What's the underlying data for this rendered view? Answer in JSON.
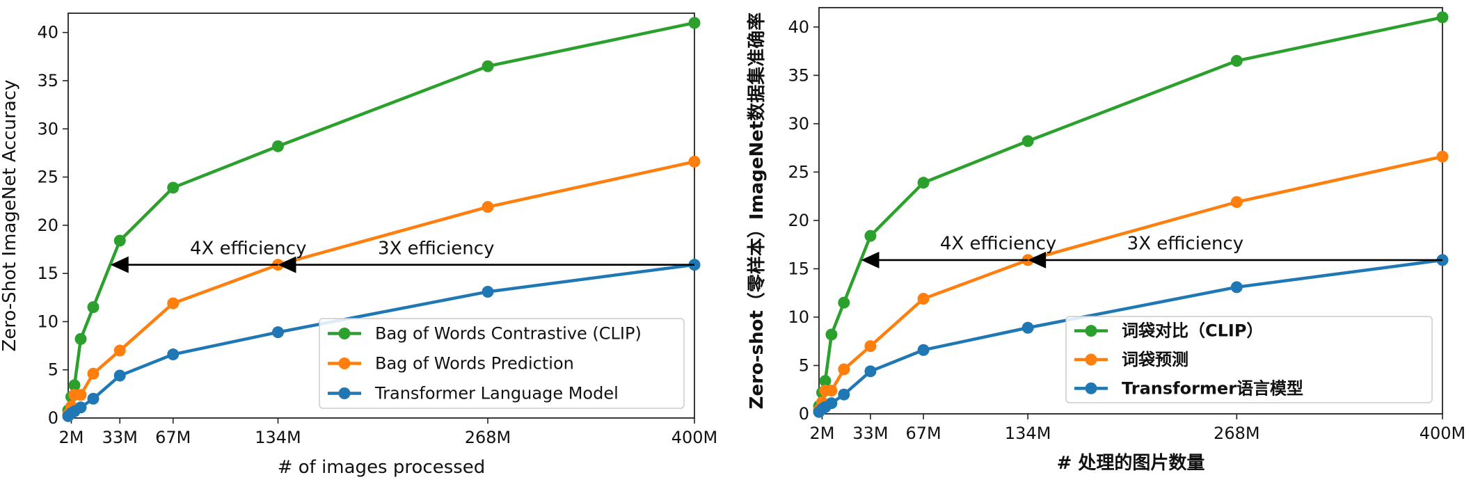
{
  "chart_data": [
    {
      "type": "line",
      "title": "",
      "xlabel": "# of images processed",
      "ylabel": "Zero-Shot ImageNet Accuracy",
      "xlim": [
        0,
        400
      ],
      "ylim": [
        0,
        42
      ],
      "xticks": [
        {
          "value": 2,
          "label": "2M"
        },
        {
          "value": 33,
          "label": "33M"
        },
        {
          "value": 67,
          "label": "67M"
        },
        {
          "value": 134,
          "label": "134M"
        },
        {
          "value": 268,
          "label": "268M"
        },
        {
          "value": 400,
          "label": "400M"
        }
      ],
      "yticks": [
        0,
        5,
        10,
        15,
        20,
        25,
        30,
        35,
        40
      ],
      "grid": false,
      "legend_position": "bottom-right",
      "series": [
        {
          "name": "Bag of Words Contrastive (CLIP)",
          "color": "#2ca02c",
          "x": [
            0,
            2,
            4,
            8,
            16,
            33,
            67,
            134,
            268,
            400
          ],
          "y": [
            0.8,
            2.2,
            3.4,
            8.2,
            11.5,
            18.4,
            23.9,
            28.2,
            36.5,
            41.0
          ]
        },
        {
          "name": "Bag of Words Prediction",
          "color": "#ff7f0e",
          "x": [
            0,
            2,
            4,
            8,
            16,
            33,
            67,
            134,
            268,
            400
          ],
          "y": [
            0.4,
            1.2,
            2.4,
            2.4,
            4.6,
            7.0,
            11.9,
            15.9,
            21.9,
            26.6
          ]
        },
        {
          "name": "Transformer Language Model",
          "color": "#1f77b4",
          "x": [
            0,
            2,
            4,
            8,
            16,
            33,
            67,
            134,
            268,
            400
          ],
          "y": [
            0.2,
            0.5,
            0.7,
            1.1,
            2.0,
            4.4,
            6.6,
            8.9,
            13.1,
            15.9
          ]
        }
      ],
      "annotations": [
        {
          "text": "4X efficiency",
          "x": 115,
          "y": 17
        },
        {
          "text": "3X efficiency",
          "x": 235,
          "y": 17
        }
      ],
      "arrows": [
        {
          "from": [
            134,
            15.9
          ],
          "to": [
            27,
            15.9
          ]
        },
        {
          "from": [
            400,
            15.9
          ],
          "to": [
            134,
            15.9
          ]
        }
      ]
    },
    {
      "type": "line",
      "title": "",
      "xlabel": "# 处理的图片数量",
      "ylabel": "Zero-shot（零样本）ImageNet数据集准确率",
      "xlim": [
        0,
        400
      ],
      "ylim": [
        0,
        42
      ],
      "xticks": [
        {
          "value": 2,
          "label": "2M"
        },
        {
          "value": 33,
          "label": "33M"
        },
        {
          "value": 67,
          "label": "67M"
        },
        {
          "value": 134,
          "label": "134M"
        },
        {
          "value": 268,
          "label": "268M"
        },
        {
          "value": 400,
          "label": "400M"
        }
      ],
      "yticks": [
        0,
        5,
        10,
        15,
        20,
        25,
        30,
        35,
        40
      ],
      "grid": false,
      "legend_position": "bottom-right",
      "series": [
        {
          "name": "词袋对比（CLIP）",
          "color": "#2ca02c",
          "x": [
            0,
            2,
            4,
            8,
            16,
            33,
            67,
            134,
            268,
            400
          ],
          "y": [
            0.8,
            2.2,
            3.4,
            8.2,
            11.5,
            18.4,
            23.9,
            28.2,
            36.5,
            41.0
          ]
        },
        {
          "name": "词袋预测",
          "color": "#ff7f0e",
          "x": [
            0,
            2,
            4,
            8,
            16,
            33,
            67,
            134,
            268,
            400
          ],
          "y": [
            0.4,
            1.2,
            2.4,
            2.4,
            4.6,
            7.0,
            11.9,
            15.9,
            21.9,
            26.6
          ]
        },
        {
          "name": "Transformer语言模型",
          "color": "#1f77b4",
          "x": [
            0,
            2,
            4,
            8,
            16,
            33,
            67,
            134,
            268,
            400
          ],
          "y": [
            0.2,
            0.5,
            0.7,
            1.1,
            2.0,
            4.4,
            6.6,
            8.9,
            13.1,
            15.9
          ]
        }
      ],
      "annotations": [
        {
          "text": "4X efficiency",
          "x": 115,
          "y": 17
        },
        {
          "text": "3X efficiency",
          "x": 235,
          "y": 17
        }
      ],
      "arrows": [
        {
          "from": [
            134,
            15.9
          ],
          "to": [
            27,
            15.9
          ]
        },
        {
          "from": [
            400,
            15.9
          ],
          "to": [
            134,
            15.9
          ]
        }
      ]
    }
  ]
}
